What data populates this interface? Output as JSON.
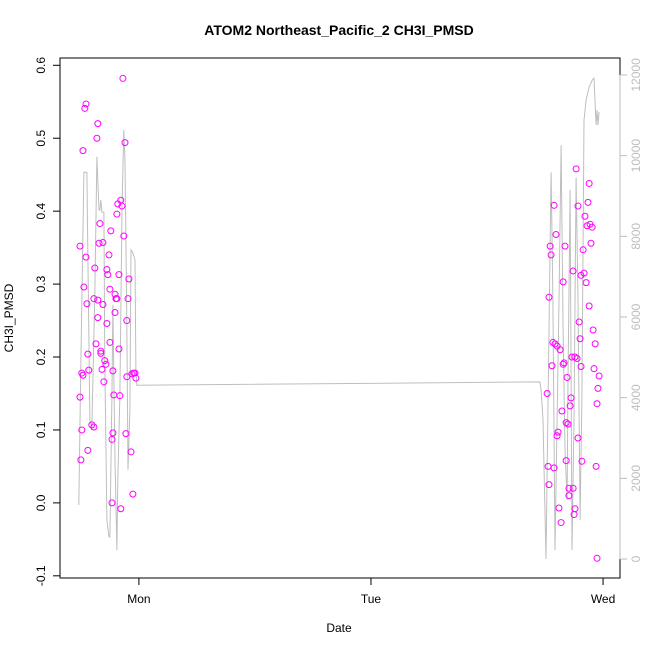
{
  "chart_data": {
    "type": "scatter",
    "title": "ATOM2 Northeast_Pacific_2 CH3I_PMSD",
    "xlabel": "Date",
    "ylabel": "CH3I_PMSD",
    "xlim": [
      -0.34,
      2.073
    ],
    "ylim": [
      -0.103,
      0.61
    ],
    "y2lim": [
      -470,
      12420
    ],
    "xticks": [
      {
        "value": 0,
        "label": "Mon"
      },
      {
        "value": 1,
        "label": "Tue"
      },
      {
        "value": 2,
        "label": "Wed"
      }
    ],
    "yticks": [
      -0.1,
      {
        "value": 0,
        "label": "0.0"
      },
      0.1,
      0.2,
      0.3,
      0.4,
      0.5,
      0.6
    ],
    "y2ticks": [
      0,
      2000,
      4000,
      6000,
      8000,
      10000,
      12000
    ],
    "series": [
      {
        "type": "scatter",
        "color": "#ff00ff",
        "x": [
          -0.254,
          -0.254,
          -0.25,
          -0.246,
          -0.246,
          -0.241,
          -0.241,
          -0.237,
          -0.233,
          -0.228,
          -0.228,
          -0.224,
          -0.22,
          -0.22,
          -0.216,
          -0.203,
          -0.194,
          -0.194,
          -0.19,
          -0.185,
          -0.181,
          -0.177,
          -0.177,
          -0.177,
          -0.172,
          -0.168,
          -0.164,
          -0.164,
          -0.159,
          -0.155,
          -0.155,
          -0.151,
          -0.147,
          -0.142,
          -0.138,
          -0.138,
          -0.134,
          -0.129,
          -0.125,
          -0.125,
          -0.121,
          -0.116,
          -0.116,
          -0.112,
          -0.112,
          -0.108,
          -0.103,
          -0.103,
          -0.099,
          -0.095,
          -0.095,
          -0.091,
          -0.086,
          -0.086,
          -0.082,
          -0.078,
          -0.078,
          -0.073,
          -0.069,
          -0.065,
          -0.06,
          -0.056,
          -0.052,
          -0.052,
          -0.047,
          -0.043,
          -0.034,
          -0.03,
          -0.026,
          -0.022,
          -0.017,
          -0.013,
          1.759,
          1.763,
          1.767,
          1.767,
          1.772,
          1.776,
          1.78,
          1.784,
          1.789,
          1.789,
          1.793,
          1.797,
          1.802,
          1.802,
          1.806,
          1.81,
          1.815,
          1.819,
          1.823,
          1.828,
          1.828,
          1.832,
          1.836,
          1.841,
          1.841,
          1.845,
          1.849,
          1.853,
          1.853,
          1.858,
          1.862,
          1.866,
          1.871,
          1.871,
          1.875,
          1.879,
          1.879,
          1.884,
          1.888,
          1.892,
          1.892,
          1.897,
          1.901,
          1.905,
          1.905,
          1.909,
          1.914,
          1.918,
          1.922,
          1.927,
          1.931,
          1.935,
          1.94,
          1.94,
          1.944,
          1.948,
          1.953,
          1.957,
          1.961,
          1.966,
          1.97,
          1.974,
          1.974,
          1.978,
          1.983
        ],
        "values": [
          0.352,
          0.145,
          0.059,
          0.178,
          0.1,
          0.175,
          0.483,
          0.296,
          0.541,
          0.547,
          0.337,
          0.273,
          0.204,
          0.072,
          0.182,
          0.107,
          0.104,
          0.28,
          0.322,
          0.218,
          0.5,
          0.52,
          0.278,
          0.254,
          0.356,
          0.383,
          0.208,
          0.205,
          0.183,
          0.357,
          0.272,
          0.166,
          0.195,
          0.19,
          0.32,
          0.246,
          0.313,
          0.34,
          0.22,
          0.293,
          0.373,
          0.087,
          0.0,
          0.181,
          0.096,
          0.148,
          0.286,
          0.261,
          0.28,
          0.396,
          0.28,
          0.41,
          0.313,
          0.211,
          0.147,
          0.415,
          -0.008,
          0.407,
          0.582,
          0.366,
          0.494,
          0.095,
          0.25,
          0.173,
          0.28,
          0.307,
          0.07,
          0.177,
          0.012,
          0.178,
          0.178,
          0.171,
          0.15,
          0.05,
          0.282,
          0.025,
          0.352,
          0.34,
          0.188,
          0.22,
          0.408,
          0.048,
          0.218,
          0.368,
          0.092,
          0.215,
          0.097,
          -0.007,
          0.21,
          -0.027,
          0.126,
          0.19,
          0.303,
          0.192,
          0.352,
          0.11,
          0.058,
          0.172,
          0.108,
          0.02,
          0.01,
          0.133,
          0.144,
          0.2,
          0.318,
          0.02,
          -0.016,
          0.2,
          -0.008,
          0.458,
          0.198,
          0.089,
          0.407,
          0.248,
          0.225,
          0.187,
          0.312,
          0.057,
          0.347,
          0.315,
          0.393,
          0.302,
          0.38,
          0.412,
          0.438,
          0.27,
          0.382,
          0.356,
          0.378,
          0.237,
          0.184,
          0.218,
          0.05,
          0.136,
          -0.076,
          0.157,
          0.174
        ]
      },
      {
        "type": "line",
        "color": "#bebebe",
        "axis": "y2",
        "x": [
          -0.259,
          -0.25,
          -0.237,
          -0.224,
          -0.22,
          -0.211,
          -0.203,
          -0.19,
          -0.181,
          -0.172,
          -0.168,
          -0.164,
          -0.159,
          -0.151,
          -0.147,
          -0.138,
          -0.129,
          -0.125,
          -0.116,
          -0.112,
          -0.103,
          -0.095,
          -0.091,
          -0.082,
          -0.073,
          -0.065,
          -0.06,
          -0.052,
          -0.047,
          -0.039,
          -0.034,
          -0.026,
          -0.017,
          -0.013,
          -0.009,
          1.728,
          1.733,
          1.741,
          1.754,
          1.767,
          1.776,
          1.784,
          1.793,
          1.802,
          1.81,
          1.819,
          1.828,
          1.836,
          1.845,
          1.849,
          1.858,
          1.866,
          1.875,
          1.884,
          1.892,
          1.901,
          1.909,
          1.918,
          1.927,
          1.94,
          1.953,
          1.961,
          1.97,
          1.974,
          1.978,
          1.983
        ],
        "values": [
          1340,
          4930,
          9590,
          9590,
          7660,
          3450,
          3200,
          6540,
          9970,
          8650,
          8650,
          8900,
          8600,
          8600,
          4930,
          970,
          550,
          550,
          4190,
          6300,
          2450,
          220,
          1960,
          4070,
          8650,
          10630,
          9890,
          5920,
          2210,
          3690,
          7660,
          7590,
          7410,
          4690,
          4310,
          4390,
          4190,
          3450,
          0,
          5680,
          9590,
          6420,
          220,
          3450,
          6420,
          10260,
          5680,
          2700,
          1460,
          4440,
          9150,
          220,
          3450,
          9450,
          6420,
          970,
          4000,
          10880,
          11380,
          11700,
          11870,
          11920,
          10760,
          11130,
          10760,
          11080
        ]
      }
    ]
  }
}
